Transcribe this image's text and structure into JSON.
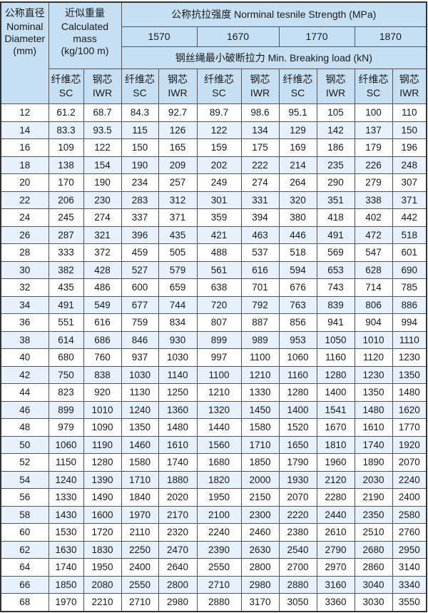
{
  "header": {
    "diameter": {
      "zh": "公称直径",
      "en1": "Nominal",
      "en2": "Diameter",
      "unit": "(mm)"
    },
    "mass": {
      "zh": "近似重量",
      "en1": "Calculated",
      "en2": "mass",
      "unit": "(kg/100 m)"
    },
    "strength_title": "公称抗拉强度 Norminal tesnile Strength (MPa)",
    "grades": [
      "1570",
      "1670",
      "1770",
      "1870"
    ],
    "breaking_title": "钢丝绳最小破断拉力 Min. Breaking load (kN)",
    "core_sc": {
      "zh": "纤维芯",
      "en": "SC"
    },
    "core_iwr": {
      "zh": "钢芯",
      "en": "IWR"
    }
  },
  "colors": {
    "header_bg": "#c7dff3",
    "alt_row_bg": "#e6f1fb",
    "border": "#555555"
  },
  "rows": [
    [
      "12",
      "61.2",
      "68.7",
      "84.3",
      "92.7",
      "89.7",
      "98.6",
      "95.1",
      "105",
      "100",
      "110"
    ],
    [
      "14",
      "83.3",
      "93.5",
      "115",
      "126",
      "122",
      "134",
      "129",
      "142",
      "137",
      "150"
    ],
    [
      "16",
      "109",
      "122",
      "150",
      "165",
      "159",
      "175",
      "169",
      "186",
      "179",
      "196"
    ],
    [
      "18",
      "138",
      "154",
      "190",
      "209",
      "202",
      "222",
      "214",
      "235",
      "226",
      "248"
    ],
    [
      "20",
      "170",
      "190",
      "234",
      "257",
      "249",
      "274",
      "264",
      "290",
      "279",
      "307"
    ],
    [
      "22",
      "206",
      "230",
      "283",
      "312",
      "301",
      "331",
      "320",
      "351",
      "338",
      "371"
    ],
    [
      "24",
      "245",
      "274",
      "337",
      "371",
      "359",
      "394",
      "380",
      "418",
      "402",
      "442"
    ],
    [
      "26",
      "287",
      "321",
      "396",
      "435",
      "421",
      "463",
      "446",
      "491",
      "472",
      "518"
    ],
    [
      "28",
      "333",
      "372",
      "459",
      "505",
      "488",
      "537",
      "518",
      "569",
      "547",
      "601"
    ],
    [
      "30",
      "382",
      "428",
      "527",
      "579",
      "561",
      "616",
      "594",
      "653",
      "628",
      "690"
    ],
    [
      "32",
      "435",
      "486",
      "600",
      "659",
      "638",
      "701",
      "676",
      "743",
      "714",
      "785"
    ],
    [
      "34",
      "491",
      "549",
      "677",
      "744",
      "720",
      "792",
      "763",
      "839",
      "806",
      "886"
    ],
    [
      "36",
      "551",
      "616",
      "759",
      "834",
      "807",
      "887",
      "856",
      "941",
      "904",
      "994"
    ],
    [
      "38",
      "614",
      "686",
      "846",
      "930",
      "899",
      "989",
      "953",
      "1050",
      "1010",
      "1110"
    ],
    [
      "40",
      "680",
      "760",
      "937",
      "1030",
      "997",
      "1100",
      "1060",
      "1160",
      "1120",
      "1230"
    ],
    [
      "42",
      "750",
      "838",
      "1030",
      "1140",
      "1100",
      "1210",
      "1160",
      "1280",
      "1230",
      "1350"
    ],
    [
      "44",
      "823",
      "920",
      "1130",
      "1250",
      "1210",
      "1330",
      "1280",
      "1400",
      "1350",
      "1480"
    ],
    [
      "46",
      "899",
      "1010",
      "1240",
      "1360",
      "1320",
      "1450",
      "1400",
      "1541",
      "1480",
      "1620"
    ],
    [
      "48",
      "979",
      "1090",
      "1350",
      "1480",
      "1440",
      "1580",
      "1520",
      "1670",
      "1610",
      "1770"
    ],
    [
      "50",
      "1060",
      "1190",
      "1460",
      "1610",
      "1560",
      "1710",
      "1650",
      "1810",
      "1740",
      "1920"
    ],
    [
      "52",
      "1150",
      "1280",
      "1580",
      "1740",
      "1680",
      "1850",
      "1790",
      "1960",
      "1890",
      "2070"
    ],
    [
      "54",
      "1240",
      "1390",
      "1710",
      "1880",
      "1820",
      "2000",
      "1930",
      "2120",
      "2030",
      "2240"
    ],
    [
      "56",
      "1330",
      "1490",
      "1840",
      "2020",
      "1950",
      "2150",
      "2070",
      "2280",
      "2190",
      "2400"
    ],
    [
      "58",
      "1430",
      "1600",
      "1970",
      "2170",
      "2100",
      "2300",
      "2220",
      "2440",
      "2350",
      "2580"
    ],
    [
      "60",
      "1530",
      "1720",
      "2110",
      "2320",
      "2240",
      "2460",
      "2380",
      "2610",
      "2510",
      "2760"
    ],
    [
      "62",
      "1630",
      "1830",
      "2250",
      "2470",
      "2390",
      "2630",
      "2540",
      "2790",
      "2680",
      "2950"
    ],
    [
      "64",
      "1740",
      "1950",
      "2400",
      "2640",
      "2550",
      "2800",
      "2700",
      "2970",
      "2860",
      "3140"
    ],
    [
      "66",
      "1850",
      "2080",
      "2550",
      "2800",
      "2710",
      "2980",
      "2880",
      "3160",
      "3040",
      "3340"
    ],
    [
      "68",
      "1970",
      "2210",
      "2710",
      "2980",
      "2880",
      "3170",
      "3050",
      "3360",
      "3030",
      "3550"
    ]
  ]
}
